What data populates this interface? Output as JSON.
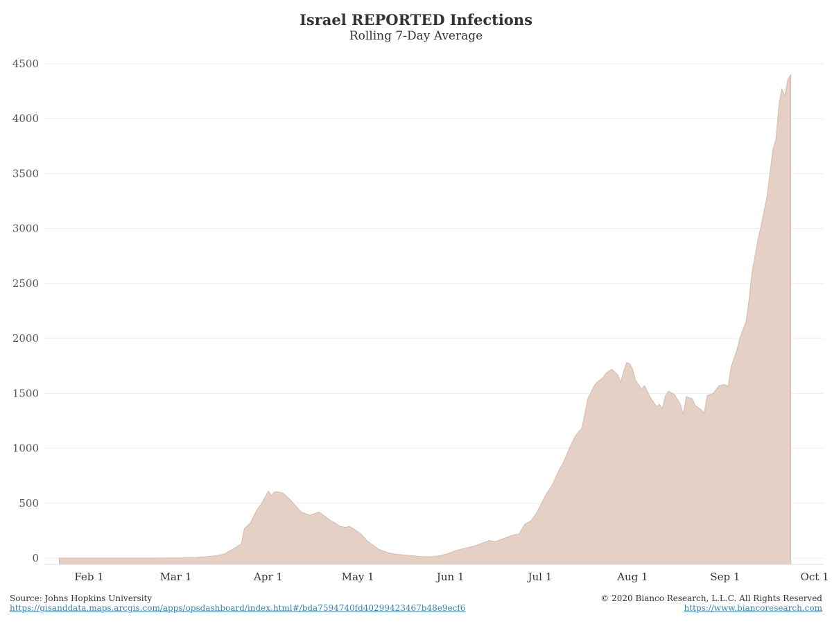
{
  "header": {
    "title": "Israel REPORTED Infections",
    "subtitle": "Rolling 7-Day Average"
  },
  "footer": {
    "source": "Source: Johns Hopkins University",
    "source_link": "https://gisanddata.maps.arcgis.com/apps/opsdashboard/index.html#/bda7594740fd40299423467b48e9ecf6",
    "copyright": "© 2020 Bianco Research, L.L.C. All Rights Reserved",
    "site_link": "https://www.biancoresearch.com"
  },
  "colors": {
    "area_fill": "#e5d0c6",
    "area_stroke": "#d6b9ab",
    "gridline": "#eeeeee",
    "link": "#3c7fb0"
  },
  "chart_data": {
    "type": "area",
    "title": "Israel REPORTED Infections",
    "subtitle": "Rolling 7-Day Average",
    "xlabel": "",
    "ylabel": "",
    "ylim": [
      0,
      4500
    ],
    "yticks": [
      0,
      500,
      1000,
      1500,
      2000,
      2500,
      3000,
      3500,
      4000,
      4500
    ],
    "xticks": [
      {
        "date": "2020-02-01",
        "label": "Feb 1"
      },
      {
        "date": "2020-03-01",
        "label": "Mar 1"
      },
      {
        "date": "2020-04-01",
        "label": "Apr 1"
      },
      {
        "date": "2020-05-01",
        "label": "May 1"
      },
      {
        "date": "2020-06-01",
        "label": "Jun 1"
      },
      {
        "date": "2020-07-01",
        "label": "Jul 1"
      },
      {
        "date": "2020-08-01",
        "label": "Aug 1"
      },
      {
        "date": "2020-09-01",
        "label": "Sep 1"
      },
      {
        "date": "2020-10-01",
        "label": "Oct 1"
      }
    ],
    "xlim": [
      "2020-01-17",
      "2020-10-04"
    ],
    "grid": true,
    "series": [
      {
        "points": [
          [
            "2020-01-22",
            0
          ],
          [
            "2020-02-21",
            0
          ],
          [
            "2020-02-27",
            1
          ],
          [
            "2020-03-03",
            2
          ],
          [
            "2020-03-07",
            5
          ],
          [
            "2020-03-11",
            12
          ],
          [
            "2020-03-14",
            20
          ],
          [
            "2020-03-17",
            35
          ],
          [
            "2020-03-20",
            80
          ],
          [
            "2020-03-23",
            130
          ],
          [
            "2020-03-24",
            270
          ],
          [
            "2020-03-26",
            320
          ],
          [
            "2020-03-28",
            430
          ],
          [
            "2020-03-30",
            510
          ],
          [
            "2020-04-01",
            610
          ],
          [
            "2020-04-02",
            570
          ],
          [
            "2020-04-03",
            600
          ],
          [
            "2020-04-04",
            605
          ],
          [
            "2020-04-06",
            590
          ],
          [
            "2020-04-08",
            540
          ],
          [
            "2020-04-10",
            480
          ],
          [
            "2020-04-12",
            420
          ],
          [
            "2020-04-14",
            400
          ],
          [
            "2020-04-15",
            390
          ],
          [
            "2020-04-17",
            410
          ],
          [
            "2020-04-18",
            420
          ],
          [
            "2020-04-20",
            380
          ],
          [
            "2020-04-22",
            340
          ],
          [
            "2020-04-24",
            310
          ],
          [
            "2020-04-25",
            290
          ],
          [
            "2020-04-27",
            280
          ],
          [
            "2020-04-28",
            290
          ],
          [
            "2020-04-30",
            260
          ],
          [
            "2020-05-01",
            240
          ],
          [
            "2020-05-02",
            220
          ],
          [
            "2020-05-04",
            160
          ],
          [
            "2020-05-06",
            120
          ],
          [
            "2020-05-08",
            80
          ],
          [
            "2020-05-11",
            50
          ],
          [
            "2020-05-14",
            35
          ],
          [
            "2020-05-18",
            25
          ],
          [
            "2020-05-22",
            15
          ],
          [
            "2020-05-25",
            12
          ],
          [
            "2020-05-28",
            20
          ],
          [
            "2020-05-31",
            40
          ],
          [
            "2020-06-03",
            70
          ],
          [
            "2020-06-06",
            90
          ],
          [
            "2020-06-09",
            110
          ],
          [
            "2020-06-12",
            140
          ],
          [
            "2020-06-14",
            160
          ],
          [
            "2020-06-16",
            150
          ],
          [
            "2020-06-18",
            170
          ],
          [
            "2020-06-20",
            190
          ],
          [
            "2020-06-22",
            210
          ],
          [
            "2020-06-24",
            220
          ],
          [
            "2020-06-26",
            310
          ],
          [
            "2020-06-28",
            340
          ],
          [
            "2020-06-30",
            420
          ],
          [
            "2020-07-03",
            580
          ],
          [
            "2020-07-05",
            660
          ],
          [
            "2020-07-07",
            780
          ],
          [
            "2020-07-09",
            880
          ],
          [
            "2020-07-11",
            1010
          ],
          [
            "2020-07-13",
            1120
          ],
          [
            "2020-07-15",
            1180
          ],
          [
            "2020-07-17",
            1450
          ],
          [
            "2020-07-19",
            1560
          ],
          [
            "2020-07-20",
            1600
          ],
          [
            "2020-07-22",
            1640
          ],
          [
            "2020-07-23",
            1680
          ],
          [
            "2020-07-25",
            1720
          ],
          [
            "2020-07-27",
            1670
          ],
          [
            "2020-07-28",
            1600
          ],
          [
            "2020-07-29",
            1700
          ],
          [
            "2020-07-30",
            1780
          ],
          [
            "2020-07-31",
            1770
          ],
          [
            "2020-08-01",
            1720
          ],
          [
            "2020-08-02",
            1620
          ],
          [
            "2020-08-04",
            1540
          ],
          [
            "2020-08-05",
            1570
          ],
          [
            "2020-08-07",
            1460
          ],
          [
            "2020-08-09",
            1380
          ],
          [
            "2020-08-10",
            1400
          ],
          [
            "2020-08-11",
            1360
          ],
          [
            "2020-08-12",
            1480
          ],
          [
            "2020-08-13",
            1520
          ],
          [
            "2020-08-15",
            1490
          ],
          [
            "2020-08-17",
            1400
          ],
          [
            "2020-08-18",
            1310
          ],
          [
            "2020-08-19",
            1470
          ],
          [
            "2020-08-21",
            1450
          ],
          [
            "2020-08-22",
            1390
          ],
          [
            "2020-08-24",
            1350
          ],
          [
            "2020-08-25",
            1320
          ],
          [
            "2020-08-26",
            1480
          ],
          [
            "2020-08-28",
            1500
          ],
          [
            "2020-08-30",
            1570
          ],
          [
            "2020-09-01",
            1580
          ],
          [
            "2020-09-02",
            1560
          ],
          [
            "2020-09-03",
            1740
          ],
          [
            "2020-09-05",
            1900
          ],
          [
            "2020-09-06",
            2010
          ],
          [
            "2020-09-08",
            2150
          ],
          [
            "2020-09-09",
            2350
          ],
          [
            "2020-09-10",
            2600
          ],
          [
            "2020-09-12",
            2900
          ],
          [
            "2020-09-13",
            3020
          ],
          [
            "2020-09-15",
            3290
          ],
          [
            "2020-09-16",
            3500
          ],
          [
            "2020-09-17",
            3720
          ],
          [
            "2020-09-18",
            3810
          ],
          [
            "2020-09-19",
            4120
          ],
          [
            "2020-09-20",
            4270
          ],
          [
            "2020-09-21",
            4210
          ],
          [
            "2020-09-22",
            4360
          ],
          [
            "2020-09-23",
            4400
          ]
        ]
      }
    ]
  }
}
